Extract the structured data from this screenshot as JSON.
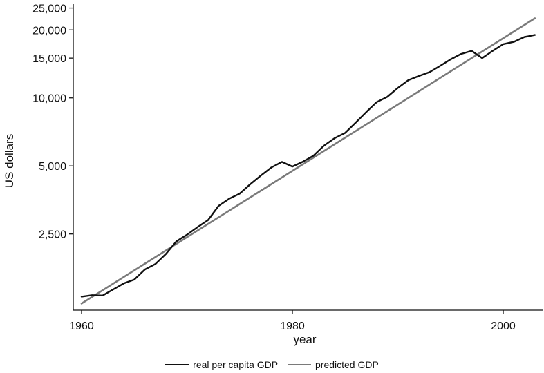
{
  "chart_data": {
    "type": "line",
    "title": "",
    "xlabel": "year",
    "ylabel": "US dollars",
    "xlim": [
      1960,
      2004
    ],
    "ylim": [
      1150,
      26000
    ],
    "yscale": "log",
    "grid": false,
    "legend_position": "bottom-center",
    "x_ticks": [
      1960,
      1980,
      2000
    ],
    "y_ticks": [
      {
        "value": 2500,
        "label": "2,500"
      },
      {
        "value": 5000,
        "label": "5,000"
      },
      {
        "value": 10000,
        "label": "10,000"
      },
      {
        "value": 15000,
        "label": "15,000"
      },
      {
        "value": 20000,
        "label": "20,000"
      },
      {
        "value": 25000,
        "label": "25,000"
      }
    ],
    "series": [
      {
        "name": "real per capita GDP",
        "color": "#111111",
        "points": [
          [
            1960,
            1320
          ],
          [
            1961,
            1340
          ],
          [
            1962,
            1335
          ],
          [
            1963,
            1420
          ],
          [
            1964,
            1510
          ],
          [
            1965,
            1570
          ],
          [
            1966,
            1740
          ],
          [
            1967,
            1840
          ],
          [
            1968,
            2040
          ],
          [
            1969,
            2320
          ],
          [
            1970,
            2480
          ],
          [
            1971,
            2680
          ],
          [
            1972,
            2880
          ],
          [
            1973,
            3330
          ],
          [
            1974,
            3580
          ],
          [
            1975,
            3770
          ],
          [
            1976,
            4150
          ],
          [
            1977,
            4530
          ],
          [
            1978,
            4920
          ],
          [
            1979,
            5210
          ],
          [
            1980,
            4970
          ],
          [
            1981,
            5220
          ],
          [
            1982,
            5550
          ],
          [
            1983,
            6150
          ],
          [
            1984,
            6630
          ],
          [
            1985,
            7000
          ],
          [
            1986,
            7770
          ],
          [
            1987,
            8650
          ],
          [
            1988,
            9580
          ],
          [
            1989,
            10110
          ],
          [
            1990,
            11070
          ],
          [
            1991,
            11990
          ],
          [
            1992,
            12500
          ],
          [
            1993,
            13000
          ],
          [
            1994,
            13850
          ],
          [
            1995,
            14800
          ],
          [
            1996,
            15650
          ],
          [
            1997,
            16150
          ],
          [
            1998,
            15000
          ],
          [
            1999,
            16150
          ],
          [
            2000,
            17300
          ],
          [
            2001,
            17700
          ],
          [
            2002,
            18600
          ],
          [
            2003,
            19000
          ]
        ]
      },
      {
        "name": "predicted GDP",
        "color": "#7a7a7a",
        "points": [
          [
            1960,
            1230
          ],
          [
            2003,
            22500
          ]
        ]
      }
    ]
  }
}
